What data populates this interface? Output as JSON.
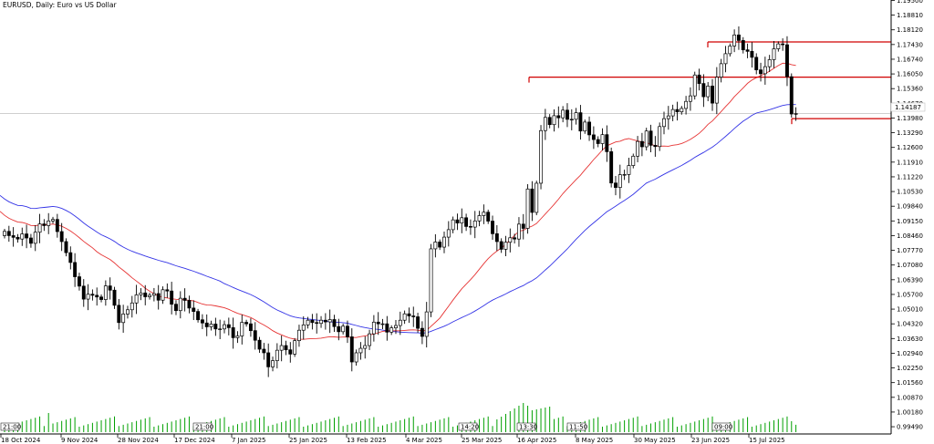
{
  "title": "EURUSD, Daily:  Euro vs US Dollar",
  "current_price": "1.14187",
  "chart_data": {
    "type": "candlestick",
    "symbol": "EURUSD",
    "timeframe": "Daily",
    "y_axis": {
      "range": [
        0.9915,
        1.1952
      ],
      "ticks": [
        "1.19500",
        "1.18810",
        "1.18120",
        "1.17430",
        "1.16740",
        "1.16050",
        "1.15360",
        "1.14670",
        "1.13980",
        "1.13290",
        "1.12600",
        "1.11910",
        "1.11220",
        "1.10530",
        "1.09840",
        "1.09150",
        "1.08460",
        "1.07770",
        "1.07080",
        "1.06390",
        "1.05700",
        "1.05010",
        "1.04320",
        "1.03630",
        "1.02940",
        "1.02250",
        "1.01560",
        "1.00870",
        "1.00180",
        "0.99490"
      ]
    },
    "x_axis": {
      "labels": [
        "18 Oct 2024",
        "9 Nov 2024",
        "28 Nov 2024",
        "17 Dec 2024",
        "7 Jan 2025",
        "25 Jan 2025",
        "13 Feb 2025",
        "4 Mar 2025",
        "25 Mar 2025",
        "16 Apr 2025",
        "8 May 2025",
        "30 May 2025",
        "23 Jun 2025",
        "15 Jul 2025"
      ]
    },
    "separator_labels": [
      "21:00",
      "21:00",
      "14:20",
      "13:30",
      "11:50",
      "09:00"
    ],
    "horizontal_levels": [
      {
        "price": 1.1755,
        "color": "#d00000"
      },
      {
        "price": 1.159,
        "color": "#d00000"
      },
      {
        "price": 1.1395,
        "color": "#d00000"
      }
    ],
    "current_price_line": 1.1419,
    "closes": [
      1.0866,
      1.0846,
      1.0838,
      1.083,
      1.0854,
      1.0835,
      1.081,
      1.0862,
      1.0901,
      1.0893,
      1.0915,
      1.0922,
      1.0865,
      1.0818,
      1.0766,
      1.072,
      1.0653,
      1.0609,
      1.0548,
      1.0571,
      1.0566,
      1.0558,
      1.0546,
      1.061,
      1.059,
      1.0519,
      1.0438,
      1.0478,
      1.0498,
      1.053,
      1.0568,
      1.0577,
      1.0559,
      1.0566,
      1.0574,
      1.0543,
      1.0592,
      1.0586,
      1.0524,
      1.0494,
      1.0552,
      1.0542,
      1.0506,
      1.049,
      1.0451,
      1.0436,
      1.0418,
      1.0431,
      1.0408,
      1.0408,
      1.0428,
      1.0414,
      1.0367,
      1.0375,
      1.0439,
      1.0432,
      1.04,
      1.0355,
      1.0313,
      1.0296,
      1.023,
      1.0259,
      1.0308,
      1.033,
      1.031,
      1.029,
      1.0353,
      1.0402,
      1.0427,
      1.0449,
      1.0438,
      1.0434,
      1.0449,
      1.0441,
      1.0452,
      1.0419,
      1.0395,
      1.0421,
      1.0371,
      1.0253,
      1.0296,
      1.0317,
      1.033,
      1.0385,
      1.044,
      1.0432,
      1.0432,
      1.0393,
      1.0413,
      1.0424,
      1.0449,
      1.0479,
      1.0469,
      1.0465,
      1.0411,
      1.0373,
      1.0488,
      1.0784,
      1.0816,
      1.0792,
      1.0839,
      1.0874,
      1.092,
      1.0905,
      1.093,
      1.0889,
      1.0886,
      1.0915,
      1.094,
      1.0956,
      1.0914,
      1.0855,
      1.0818,
      1.0782,
      1.0815,
      1.0836,
      1.083,
      1.09,
      1.088,
      1.1065,
      1.0955,
      1.1092,
      1.1339,
      1.1401,
      1.1367,
      1.1409,
      1.1399,
      1.1435,
      1.1392,
      1.1392,
      1.1423,
      1.1337,
      1.1379,
      1.1319,
      1.1297,
      1.1278,
      1.132,
      1.124,
      1.1093,
      1.1072,
      1.1132,
      1.1133,
      1.1175,
      1.1219,
      1.1288,
      1.1263,
      1.1337,
      1.127,
      1.1264,
      1.1358,
      1.1395,
      1.1408,
      1.1438,
      1.1427,
      1.1443,
      1.1476,
      1.1502,
      1.16,
      1.156,
      1.1498,
      1.1548,
      1.1468,
      1.159,
      1.1653,
      1.17,
      1.1736,
      1.1788,
      1.1762,
      1.1718,
      1.1711,
      1.1683,
      1.1624,
      1.1606,
      1.1639,
      1.1672,
      1.1723,
      1.1746,
      1.1742,
      1.1592,
      1.1417,
      1.1419
    ],
    "ma_fast_color": "#e00000",
    "ma_slow_color": "#0000e0",
    "volume_color": "#00a000"
  }
}
